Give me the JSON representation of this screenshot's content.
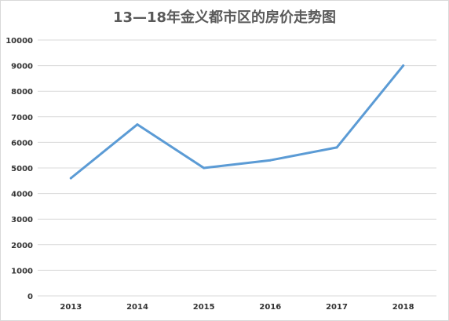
{
  "chart_data": {
    "type": "line",
    "title": "13—18年金义都市区的房价走势图",
    "x": [
      "2013",
      "2014",
      "2015",
      "2016",
      "2017",
      "2018"
    ],
    "series": [
      {
        "values": [
          4600,
          6700,
          5000,
          5300,
          5800,
          9000
        ],
        "color": "#5b9bd5"
      }
    ],
    "ylim": [
      0,
      10000
    ],
    "yticks": [
      0,
      1000,
      2000,
      3000,
      4000,
      5000,
      6000,
      7000,
      8000,
      9000,
      10000
    ],
    "grid": true,
    "gridColor": "#d9d9d9",
    "xlabel": "",
    "ylabel": ""
  }
}
